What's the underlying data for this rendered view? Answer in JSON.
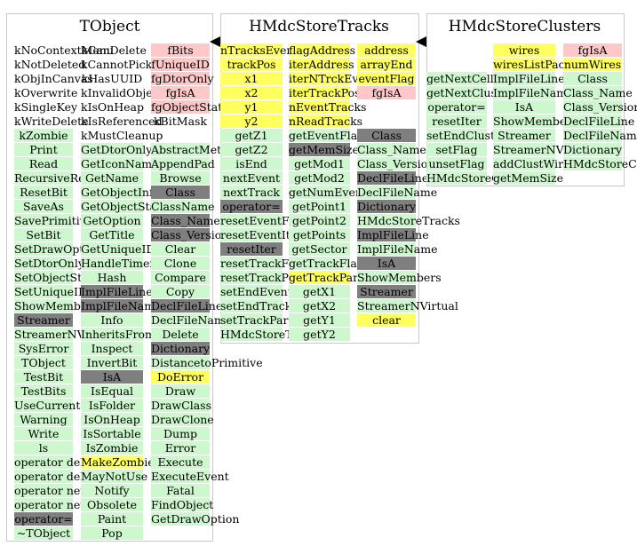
{
  "classes": [
    {
      "name": "TObject",
      "columns": [
        {
          "items": [
            [
              "kNoContextMenu",
              ""
            ],
            [
              "kNotDeleted",
              ""
            ],
            [
              "kObjInCanvas",
              ""
            ],
            [
              "kOverwrite",
              ""
            ],
            [
              "kSingleKey",
              ""
            ],
            [
              "kWriteDelete",
              ""
            ],
            [
              "kZombie",
              "g"
            ],
            [
              "Print",
              "g"
            ],
            [
              "Read",
              "g"
            ],
            [
              "RecursiveRemove",
              "g"
            ],
            [
              "ResetBit",
              "g"
            ],
            [
              "SaveAs",
              "g"
            ],
            [
              "SavePrimitive",
              "g"
            ],
            [
              "SetBit",
              "g"
            ],
            [
              "SetDrawOption",
              "g"
            ],
            [
              "SetDtorOnly",
              "g"
            ],
            [
              "SetObjectStat",
              "g"
            ],
            [
              "SetUniqueID",
              "g"
            ],
            [
              "ShowMembers",
              "g"
            ],
            [
              "Streamer",
              "d"
            ],
            [
              "StreamerNVirtual",
              "g"
            ],
            [
              "SysError",
              "g"
            ],
            [
              "TObject",
              "g"
            ],
            [
              "TestBit",
              "g"
            ],
            [
              "TestBits",
              "g"
            ],
            [
              "UseCurrentStyle",
              "g"
            ],
            [
              "Warning",
              "g"
            ],
            [
              "Write",
              "g"
            ],
            [
              "ls",
              "g"
            ],
            [
              "operator delete",
              "g"
            ],
            [
              "operator delete[]",
              "g"
            ],
            [
              "operator new",
              "g"
            ],
            [
              "operator new[]",
              "g"
            ],
            [
              "operator=",
              "d"
            ],
            [
              "~TObject",
              "g"
            ]
          ]
        },
        {
          "items": [
            [
              "kCanDelete",
              ""
            ],
            [
              "kCannotPick",
              ""
            ],
            [
              "kHasUUID",
              ""
            ],
            [
              "kInvalidObject",
              ""
            ],
            [
              "kIsOnHeap",
              ""
            ],
            [
              "kIsReferenced",
              ""
            ],
            [
              "kMustCleanup",
              ""
            ],
            [
              "GetDtorOnly",
              "g"
            ],
            [
              "GetIconName",
              "g"
            ],
            [
              "GetName",
              "g"
            ],
            [
              "GetObjectInfo",
              "g"
            ],
            [
              "GetObjectStat",
              "g"
            ],
            [
              "GetOption",
              "g"
            ],
            [
              "GetTitle",
              "g"
            ],
            [
              "GetUniqueID",
              "g"
            ],
            [
              "HandleTimer",
              "g"
            ],
            [
              "Hash",
              "g"
            ],
            [
              "ImplFileLine",
              "d"
            ],
            [
              "ImplFileName",
              "d"
            ],
            [
              "Info",
              "g"
            ],
            [
              "InheritsFrom",
              "g"
            ],
            [
              "Inspect",
              "g"
            ],
            [
              "InvertBit",
              "g"
            ],
            [
              "IsA",
              "d"
            ],
            [
              "IsEqual",
              "g"
            ],
            [
              "IsFolder",
              "g"
            ],
            [
              "IsOnHeap",
              "g"
            ],
            [
              "IsSortable",
              "g"
            ],
            [
              "IsZombie",
              "g"
            ],
            [
              "MakeZombie",
              "y"
            ],
            [
              "MayNotUse",
              "g"
            ],
            [
              "Notify",
              "g"
            ],
            [
              "Obsolete",
              "g"
            ],
            [
              "Paint",
              "g"
            ],
            [
              "Pop",
              "g"
            ]
          ]
        },
        {
          "items": [
            [
              "fBits",
              "p"
            ],
            [
              "fUniqueID",
              "p"
            ],
            [
              "fgDtorOnly",
              "p"
            ],
            [
              "fgIsA",
              "p"
            ],
            [
              "fgObjectStat",
              "p"
            ],
            [
              "kBitMask",
              ""
            ],
            [
              "",
              ""
            ],
            [
              "AbstractMethod",
              "g"
            ],
            [
              "AppendPad",
              "g"
            ],
            [
              "Browse",
              "g"
            ],
            [
              "Class",
              "d"
            ],
            [
              "ClassName",
              "g"
            ],
            [
              "Class_Name",
              "d"
            ],
            [
              "Class_Version",
              "d"
            ],
            [
              "Clear",
              "g"
            ],
            [
              "Clone",
              "g"
            ],
            [
              "Compare",
              "g"
            ],
            [
              "Copy",
              "g"
            ],
            [
              "DeclFileLine",
              "d"
            ],
            [
              "DeclFileName",
              "g"
            ],
            [
              "Delete",
              "g"
            ],
            [
              "Dictionary",
              "d"
            ],
            [
              "DistancetoPrimitive",
              "g"
            ],
            [
              "DoError",
              "y"
            ],
            [
              "Draw",
              "g"
            ],
            [
              "DrawClass",
              "g"
            ],
            [
              "DrawClone",
              "g"
            ],
            [
              "Dump",
              "g"
            ],
            [
              "Error",
              "g"
            ],
            [
              "Execute",
              "g"
            ],
            [
              "ExecuteEvent",
              "g"
            ],
            [
              "Fatal",
              "g"
            ],
            [
              "FindObject",
              "g"
            ],
            [
              "GetDrawOption",
              "g"
            ]
          ]
        }
      ]
    },
    {
      "name": "HMdcStoreTracks",
      "columns": [
        {
          "items": [
            [
              "nTracksEvent",
              "y"
            ],
            [
              "trackPos",
              "y"
            ],
            [
              "x1",
              "y"
            ],
            [
              "x2",
              "y"
            ],
            [
              "y1",
              "y"
            ],
            [
              "y2",
              "y"
            ],
            [
              "getZ1",
              "g"
            ],
            [
              "getZ2",
              "g"
            ],
            [
              "isEnd",
              "g"
            ],
            [
              "nextEvent",
              "g"
            ],
            [
              "nextTrack",
              "g"
            ],
            [
              "operator=",
              "d"
            ],
            [
              "resetEventFlag",
              "g"
            ],
            [
              "resetEventIter",
              "g"
            ],
            [
              "resetIter",
              "d"
            ],
            [
              "resetTrackFlag",
              "g"
            ],
            [
              "resetTrackPar",
              "g"
            ],
            [
              "setEndEvent",
              "g"
            ],
            [
              "setEndTrack",
              "g"
            ],
            [
              "setTrackPar",
              "g"
            ],
            [
              "HMdcStoreTracks",
              "g"
            ]
          ]
        },
        {
          "items": [
            [
              "flagAddress",
              "y"
            ],
            [
              "iterAddress",
              "y"
            ],
            [
              "iterNTrckEv",
              "y"
            ],
            [
              "iterTrackPos",
              "y"
            ],
            [
              "nEventTracks",
              "y"
            ],
            [
              "nReadTracks",
              "y"
            ],
            [
              "getEventFlag",
              "g"
            ],
            [
              "getMemSize",
              "d"
            ],
            [
              "getMod1",
              "g"
            ],
            [
              "getMod2",
              "g"
            ],
            [
              "getNumEventTracks",
              "g"
            ],
            [
              "getPoint1",
              "g"
            ],
            [
              "getPoint2",
              "g"
            ],
            [
              "getPoints",
              "g"
            ],
            [
              "getSector",
              "g"
            ],
            [
              "getTrackFlag",
              "g"
            ],
            [
              "getTrackPar",
              "y"
            ],
            [
              "getX1",
              "g"
            ],
            [
              "getX2",
              "g"
            ],
            [
              "getY1",
              "g"
            ],
            [
              "getY2",
              "g"
            ]
          ]
        },
        {
          "items": [
            [
              "address",
              "y"
            ],
            [
              "arrayEnd",
              "y"
            ],
            [
              "eventFlag",
              "y"
            ],
            [
              "fgIsA",
              "p"
            ],
            [
              "",
              ""
            ],
            [
              "",
              ""
            ],
            [
              "Class",
              "d"
            ],
            [
              "Class_Name",
              "g"
            ],
            [
              "Class_Version",
              "g"
            ],
            [
              "DeclFileLine",
              "d"
            ],
            [
              "DeclFileName",
              "g"
            ],
            [
              "Dictionary",
              "d"
            ],
            [
              "HMdcStoreTracks",
              "g"
            ],
            [
              "ImplFileLine",
              "d"
            ],
            [
              "ImplFileName",
              "g"
            ],
            [
              "IsA",
              "d"
            ],
            [
              "ShowMembers",
              "g"
            ],
            [
              "Streamer",
              "d"
            ],
            [
              "StreamerNVirtual",
              "g"
            ],
            [
              "clear",
              "y"
            ]
          ]
        }
      ]
    },
    {
      "name": "HMdcStoreClusters",
      "columns": [
        {
          "items": [
            [
              "",
              ""
            ],
            [
              "",
              ""
            ],
            [
              "getNextCell",
              "g"
            ],
            [
              "getNextCluster",
              "g"
            ],
            [
              "operator=",
              "g"
            ],
            [
              "resetIter",
              "g"
            ],
            [
              "setEndCluster",
              "g"
            ],
            [
              "setFlag",
              "g"
            ],
            [
              "unsetFlag",
              "g"
            ],
            [
              "HMdcStoreClusters",
              "g"
            ]
          ]
        },
        {
          "items": [
            [
              "wires",
              "y"
            ],
            [
              "wiresListPack",
              "y"
            ],
            [
              "ImplFileLine",
              "g"
            ],
            [
              "ImplFileName",
              "g"
            ],
            [
              "IsA",
              "g"
            ],
            [
              "ShowMembers",
              "g"
            ],
            [
              "Streamer",
              "g"
            ],
            [
              "StreamerNVirtual",
              "g"
            ],
            [
              "addClustWires",
              "g"
            ],
            [
              "getMemSize",
              "g"
            ]
          ]
        },
        {
          "items": [
            [
              "fgIsA",
              "p"
            ],
            [
              "numWires",
              "y"
            ],
            [
              "Class",
              "g"
            ],
            [
              "Class_Name",
              "g"
            ],
            [
              "Class_Version",
              "g"
            ],
            [
              "DeclFileLine",
              "g"
            ],
            [
              "DeclFileName",
              "g"
            ],
            [
              "Dictionary",
              "g"
            ],
            [
              "HMdcStoreClusters",
              "g"
            ]
          ]
        }
      ]
    }
  ]
}
